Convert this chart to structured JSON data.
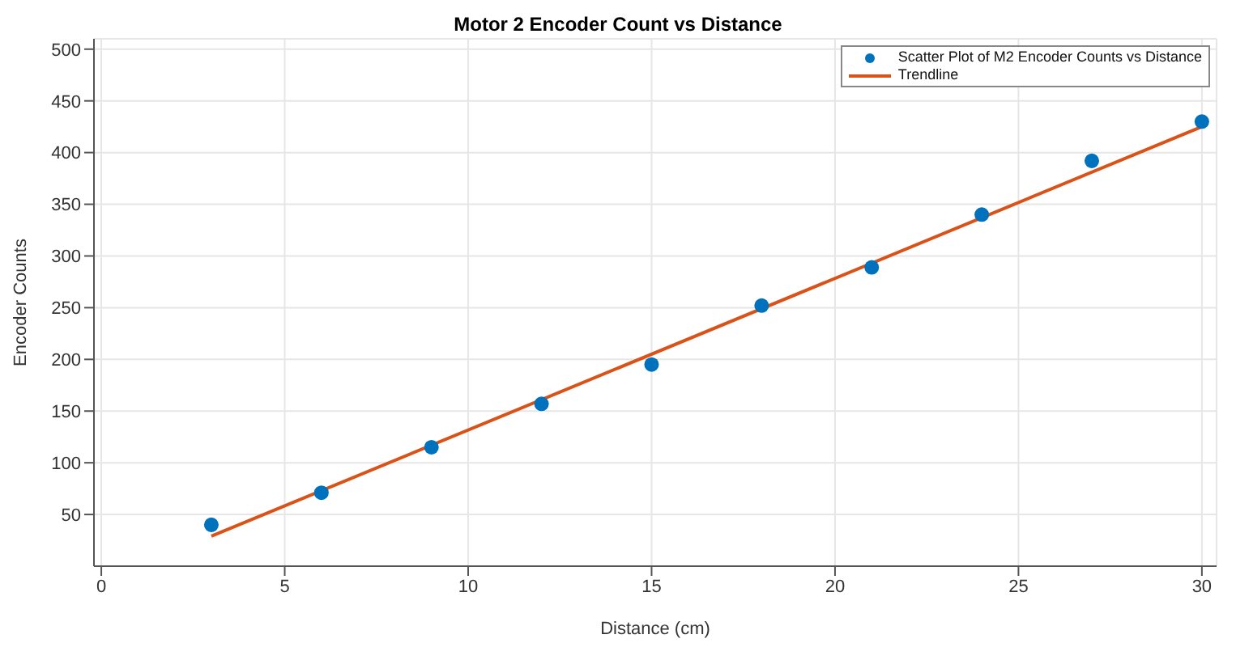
{
  "chart_data": {
    "type": "scatter",
    "title": "Motor 2 Encoder Count vs Distance",
    "xlabel": "Distance (cm)",
    "ylabel": "Encoder Counts",
    "xlim": [
      -0.2,
      30.4
    ],
    "xticks": [
      0,
      5,
      10,
      15,
      20,
      25,
      30
    ],
    "ylim": [
      0,
      510
    ],
    "yticks": [
      50,
      100,
      150,
      200,
      250,
      300,
      350,
      400,
      450,
      500
    ],
    "grid": true,
    "legend": "top right",
    "series": [
      {
        "name": "Scatter Plot of M2 Encoder Counts vs Distance",
        "color": "#0072bd",
        "marker": "circle",
        "x": [
          3,
          6,
          9,
          12,
          15,
          18,
          21,
          24,
          27,
          30
        ],
        "values": [
          40,
          71,
          115,
          157,
          195,
          252,
          289,
          340,
          392,
          430
        ]
      },
      {
        "name": "Trendline",
        "type": "line",
        "color": "#d95319",
        "marker": "none",
        "line_style": "solid",
        "x": [
          3,
          30
        ],
        "values": [
          29,
          425
        ]
      }
    ]
  }
}
